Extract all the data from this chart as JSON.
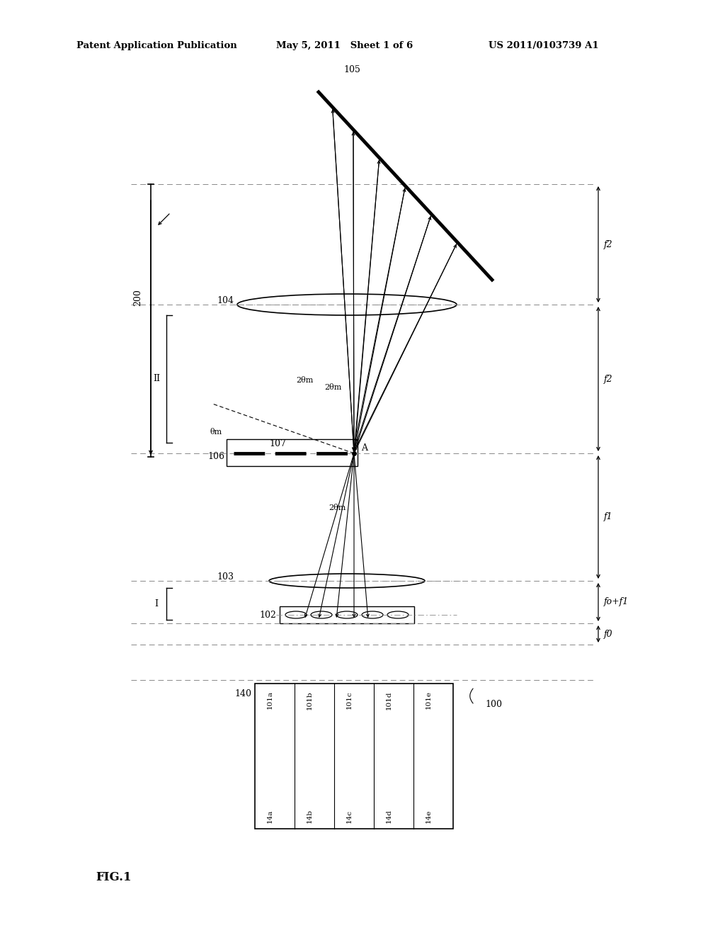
{
  "title_left": "Patent Application Publication",
  "title_center": "May 5, 2011   Sheet 1 of 6",
  "title_right": "US 2011/0103739 A1",
  "fig_label": "FIG.1",
  "bg_color": "#ffffff",
  "line_color": "#000000",
  "dashed_color": "#888888",
  "label_200": "200",
  "label_105": "105",
  "label_104": "104",
  "label_107": "107",
  "label_106": "106",
  "label_103": "103",
  "label_102": "102",
  "label_100": "100",
  "label_140": "140",
  "label_A": "A",
  "label_f2_top": "f2",
  "label_f2_bot": "f2",
  "label_f1": "f1",
  "label_f0": "f0",
  "label_f0f1": "fo+f1",
  "label_2theta_m1": "2θm",
  "label_2theta_m2": "2θm",
  "label_2theta_m3": "2θm",
  "label_theta_m": "θm",
  "label_II": "II",
  "label_I": "I",
  "fiber_labels": [
    "101a",
    "101b",
    "101c",
    "101d",
    "101e"
  ],
  "port_labels": [
    "14a",
    "14b",
    "14c",
    "14d",
    "14e"
  ]
}
